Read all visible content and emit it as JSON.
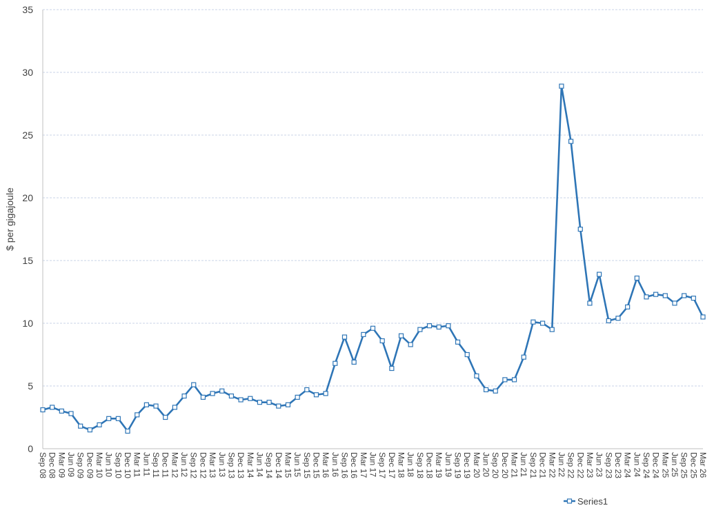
{
  "chart_data": {
    "type": "line",
    "title": "",
    "xlabel": "",
    "ylabel": "$ per gigajoule",
    "ylim": [
      0,
      35
    ],
    "y_ticks": [
      0,
      5,
      10,
      15,
      20,
      25,
      30,
      35
    ],
    "grid": true,
    "legend_position": "bottom",
    "categories": [
      "Sep 08",
      "Dec 08",
      "Mar 09",
      "Jun 09",
      "Sep 09",
      "Dec 09",
      "Mar 10",
      "Jun 10",
      "Sep 10",
      "Dec 10",
      "Mar 11",
      "Jun 11",
      "Sep 11",
      "Dec 11",
      "Mar 12",
      "Jun 12",
      "Sep 12",
      "Dec 12",
      "Mar 13",
      "Jun 13",
      "Sep 13",
      "Dec 13",
      "Mar 14",
      "Jun 14",
      "Sep 14",
      "Dec 14",
      "Mar 15",
      "Jun 15",
      "Sep 15",
      "Dec 15",
      "Mar 16",
      "Jun 16",
      "Sep 16",
      "Dec 16",
      "Mar 17",
      "Jun 17",
      "Sep 17",
      "Dec 17",
      "Mar 18",
      "Jun 18",
      "Sep 18",
      "Dec 18",
      "Mar 19",
      "Jun 19",
      "Sep 19",
      "Dec 19",
      "Mar 20",
      "Jun 20",
      "Sep 20",
      "Dec 20",
      "Mar 21",
      "Jun 21",
      "Sep 21",
      "Dec 21",
      "Mar 22",
      "Jun 22",
      "Sep 22",
      "Dec 22",
      "Mar 23",
      "Jun 23",
      "Sep 23",
      "Dec 23",
      "Mar 24",
      "Jun 24",
      "Sep 24",
      "Dec 24",
      "Mar 25",
      "Jun 25",
      "Sep 25",
      "Dec 25",
      "Mar 26"
    ],
    "series": [
      {
        "name": "Series1",
        "color": "#2e75b6",
        "values": [
          3.1,
          3.3,
          3.0,
          2.8,
          1.8,
          1.5,
          1.9,
          2.4,
          2.4,
          1.4,
          2.7,
          3.5,
          3.4,
          2.5,
          3.3,
          4.2,
          5.1,
          4.1,
          4.4,
          4.6,
          4.2,
          3.9,
          4.0,
          3.7,
          3.7,
          3.4,
          3.5,
          4.1,
          4.7,
          4.3,
          4.4,
          6.8,
          8.9,
          6.9,
          9.1,
          9.6,
          8.6,
          6.4,
          9.0,
          8.3,
          9.5,
          9.8,
          9.7,
          9.8,
          8.5,
          7.5,
          5.8,
          4.7,
          4.6,
          5.5,
          5.5,
          7.3,
          10.1,
          10.0,
          9.5,
          28.9,
          24.5,
          17.5,
          11.6,
          13.9,
          10.2,
          10.4,
          11.3,
          13.6,
          12.1,
          12.3,
          12.2,
          11.6,
          12.2,
          12.0,
          10.5
        ]
      }
    ]
  }
}
